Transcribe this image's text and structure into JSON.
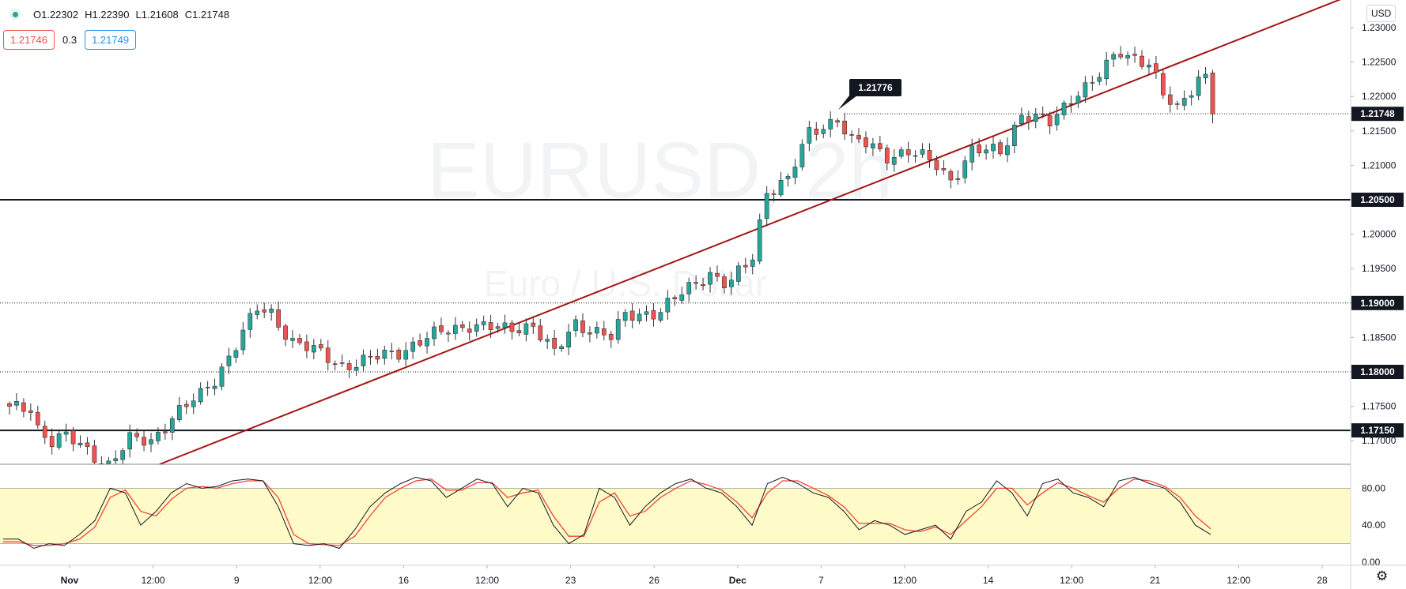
{
  "header": {
    "open": "O1.22302",
    "high": "H1.22390",
    "low": "L1.21608",
    "close": "C1.21748",
    "bid": "1.21746",
    "spread": "0.3",
    "ask": "1.21749",
    "currency": "USD"
  },
  "watermark": {
    "symbol": "EURUSD, 2h",
    "name": "Euro / U.S. Dollar"
  },
  "colors": {
    "up": "#26a69a",
    "down": "#ef5350",
    "trendline": "#a31515",
    "stoch_k": "#131722",
    "stoch_d": "#f44336",
    "stoch_band": "#fffbc8"
  },
  "chart_data": {
    "type": "candlestick",
    "price_axis": {
      "ticks": [
        "1.23000",
        "1.22500",
        "1.22000",
        "1.21500",
        "1.21000",
        "1.20500",
        "1.20000",
        "1.19500",
        "1.19000",
        "1.18500",
        "1.18000",
        "1.17500",
        "1.17150",
        "1.17000"
      ],
      "range": [
        1.1665,
        1.2308
      ]
    },
    "time_axis": {
      "labels": [
        "Nov",
        "12:00",
        "9",
        "12:00",
        "16",
        "12:00",
        "23",
        "26",
        "Dec",
        "7",
        "12:00",
        "14",
        "12:00",
        "21",
        "12:00",
        "28"
      ]
    },
    "last_price": "1.21748",
    "high_marker": "1.21776",
    "horizontal_levels": [
      {
        "price": 1.205,
        "label": "1.20500",
        "style": "solid"
      },
      {
        "price": 1.19,
        "label": "1.19000",
        "style": "dotted"
      },
      {
        "price": 1.18,
        "label": "1.18000",
        "style": "dotted"
      },
      {
        "price": 1.1715,
        "label": "1.17150",
        "style": "solid"
      }
    ],
    "trendline": {
      "from": {
        "bar": 0,
        "price": 1.158
      },
      "to": {
        "bar": 170,
        "price": 1.2268
      }
    },
    "anchors": [
      [
        0,
        1.1745
      ],
      [
        3,
        1.1748
      ],
      [
        4,
        1.172
      ],
      [
        6,
        1.17
      ],
      [
        8,
        1.1705
      ],
      [
        14,
        1.1666
      ],
      [
        17,
        1.17
      ],
      [
        20,
        1.17
      ],
      [
        23,
        1.1735
      ],
      [
        27,
        1.1765
      ],
      [
        29,
        1.179
      ],
      [
        32,
        1.184
      ],
      [
        35,
        1.189
      ],
      [
        37,
        1.1885
      ],
      [
        40,
        1.1845
      ],
      [
        44,
        1.1825
      ],
      [
        47,
        1.181
      ],
      [
        50,
        1.1815
      ],
      [
        55,
        1.183
      ],
      [
        58,
        1.1845
      ],
      [
        62,
        1.186
      ],
      [
        65,
        1.187
      ],
      [
        70,
        1.186
      ],
      [
        74,
        1.187
      ],
      [
        77,
        1.1825
      ],
      [
        80,
        1.187
      ],
      [
        83,
        1.186
      ],
      [
        85,
        1.185
      ],
      [
        87,
        1.188
      ],
      [
        92,
        1.189
      ],
      [
        96,
        1.192
      ],
      [
        99,
        1.1945
      ],
      [
        101,
        1.193
      ],
      [
        102,
        1.193
      ],
      [
        105,
        1.1965
      ],
      [
        107,
        1.2065
      ],
      [
        110,
        1.208
      ],
      [
        113,
        1.2145
      ],
      [
        117,
        1.217
      ],
      [
        119,
        1.2135
      ],
      [
        121,
        1.213
      ],
      [
        124,
        1.2115
      ],
      [
        127,
        1.212
      ],
      [
        131,
        1.21
      ],
      [
        133,
        1.208
      ],
      [
        136,
        1.212
      ],
      [
        140,
        1.212
      ],
      [
        143,
        1.2175
      ],
      [
        147,
        1.216
      ],
      [
        151,
        1.221
      ],
      [
        153,
        1.222
      ],
      [
        157,
        1.2265
      ],
      [
        161,
        1.225
      ],
      [
        163,
        1.22
      ],
      [
        165,
        1.218
      ],
      [
        168,
        1.223
      ],
      [
        169,
        1.223
      ],
      [
        170,
        1.2175
      ]
    ],
    "stochastic": {
      "levels": [
        "80.00",
        "40.00",
        "0.00"
      ],
      "band": [
        20,
        80
      ],
      "k": [
        25,
        25,
        15,
        20,
        18,
        30,
        45,
        80,
        75,
        40,
        55,
        75,
        85,
        80,
        82,
        88,
        90,
        88,
        60,
        20,
        18,
        20,
        15,
        35,
        60,
        75,
        85,
        92,
        88,
        70,
        80,
        90,
        85,
        60,
        80,
        75,
        40,
        20,
        30,
        80,
        70,
        40,
        60,
        75,
        85,
        90,
        80,
        75,
        60,
        40,
        85,
        92,
        85,
        75,
        70,
        55,
        35,
        45,
        40,
        30,
        35,
        40,
        25,
        55,
        65,
        88,
        75,
        50,
        85,
        90,
        75,
        70,
        60,
        88,
        92,
        85,
        80,
        65,
        40,
        30
      ],
      "d": [
        22,
        22,
        18,
        18,
        20,
        25,
        38,
        70,
        78,
        55,
        50,
        68,
        80,
        82,
        80,
        85,
        88,
        88,
        70,
        30,
        20,
        19,
        18,
        28,
        50,
        70,
        80,
        88,
        90,
        78,
        78,
        86,
        86,
        70,
        75,
        78,
        50,
        28,
        28,
        65,
        75,
        50,
        55,
        70,
        80,
        88,
        84,
        78,
        65,
        48,
        75,
        88,
        88,
        80,
        72,
        60,
        42,
        42,
        42,
        35,
        33,
        38,
        30,
        45,
        60,
        80,
        80,
        62,
        75,
        86,
        80,
        72,
        65,
        80,
        90,
        88,
        82,
        70,
        50,
        36
      ]
    }
  }
}
